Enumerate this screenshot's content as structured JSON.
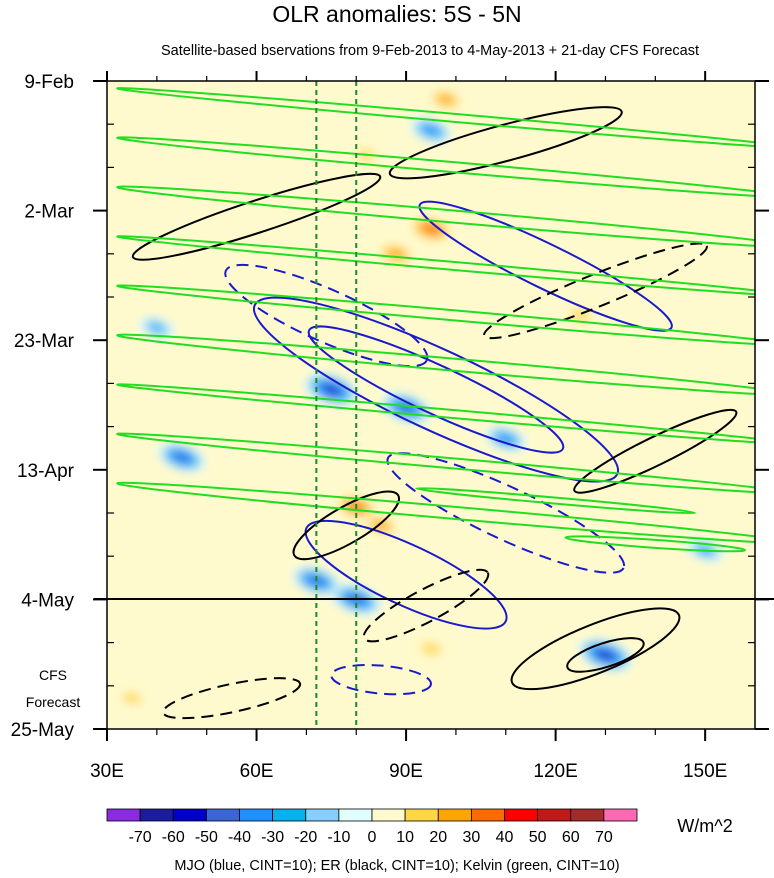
{
  "chart_data": {
    "type": "heatmap",
    "title": "OLR anomalies: 5S - 5N",
    "subtitle": "Satellite-based bservations from 9-Feb-2013 to 4-May-2013 + 21-day CFS Forecast",
    "x_axis": {
      "range": [
        30,
        160
      ],
      "ticks": [
        30,
        60,
        90,
        120,
        150
      ],
      "tick_labels": [
        "30E",
        "60E",
        "90E",
        "120E",
        "150E"
      ]
    },
    "y_axis": {
      "orientation": "time increases downward",
      "range_days": [
        0,
        105
      ],
      "tick_days": [
        0,
        21,
        42,
        63,
        84,
        105
      ],
      "tick_labels": [
        "9-Feb",
        "2-Mar",
        "23-Mar",
        "13-Apr",
        "4-May",
        "25-May"
      ]
    },
    "forecast_divider_label": "4-May",
    "forecast_label": [
      "CFS",
      "Forecast"
    ],
    "reference_lines_lon": [
      72,
      80
    ],
    "colorbar": {
      "levels": [
        -70,
        -60,
        -50,
        -40,
        -30,
        -20,
        -10,
        0,
        10,
        20,
        30,
        40,
        50,
        60,
        70
      ],
      "colors": [
        "#8a2be2",
        "#1c1ca0",
        "#0000cd",
        "#3a64d8",
        "#1e90ff",
        "#00b2ee",
        "#87cefa",
        "#e0ffff",
        "#fffacd",
        "#ffd740",
        "#ffa500",
        "#ff6a00",
        "#ff0000",
        "#c21818",
        "#a52a2a",
        "#ff69b4"
      ],
      "units": "W/m^2"
    },
    "anomaly_features": [
      {
        "lon": 95,
        "day": 24,
        "value": 45
      },
      {
        "lon": 88,
        "day": 28,
        "value": 35
      },
      {
        "lon": 82,
        "day": 12,
        "value": 20
      },
      {
        "lon": 125,
        "day": 38,
        "value": 25
      },
      {
        "lon": 80,
        "day": 69,
        "value": 40
      },
      {
        "lon": 85,
        "day": 72,
        "value": 30
      },
      {
        "lon": 95,
        "day": 92,
        "value": 25
      },
      {
        "lon": 35,
        "day": 100,
        "value": 20
      },
      {
        "lon": 98,
        "day": 3,
        "value": 30
      },
      {
        "lon": 75,
        "day": 50,
        "value": -60
      },
      {
        "lon": 90,
        "day": 53,
        "value": -55
      },
      {
        "lon": 110,
        "day": 58,
        "value": -40
      },
      {
        "lon": 45,
        "day": 61,
        "value": -50
      },
      {
        "lon": 130,
        "day": 93,
        "value": -60
      },
      {
        "lon": 80,
        "day": 84,
        "value": -55
      },
      {
        "lon": 72,
        "day": 81,
        "value": -50
      },
      {
        "lon": 95,
        "day": 8,
        "value": -40
      },
      {
        "lon": 150,
        "day": 76,
        "value": -35
      },
      {
        "lon": 40,
        "day": 40,
        "value": -30
      }
    ],
    "contour_series": [
      {
        "name": "MJO",
        "color": "#1a1acd"
      },
      {
        "name": "ER",
        "color": "#000000"
      },
      {
        "name": "Kelvin",
        "color": "#22dd22"
      }
    ],
    "legend_caption": "MJO (blue, CINT=10); ER (black, CINT=10); Kelvin (green, CINT=10)"
  }
}
